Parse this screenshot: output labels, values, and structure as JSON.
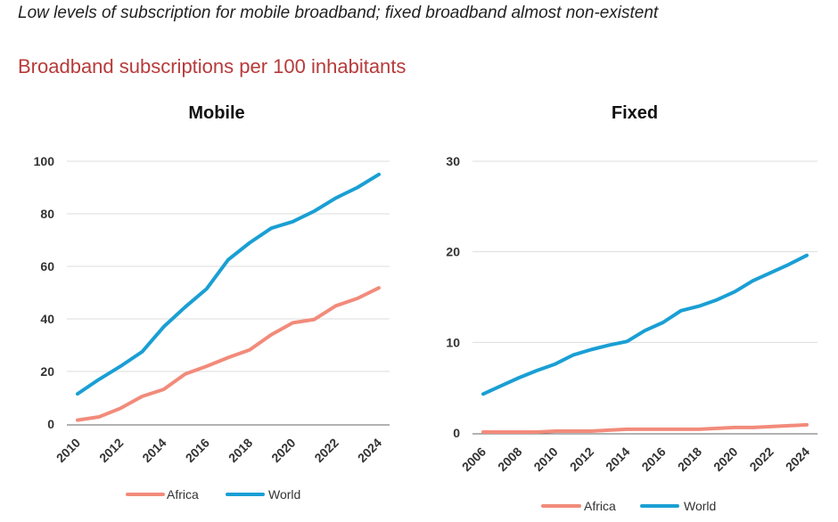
{
  "header": {
    "headline": "Low levels of subscription for mobile broadband; fixed broadband almost non-existent",
    "subtitle": "Broadband subscriptions per 100 inhabitants"
  },
  "colors": {
    "subtitle": "#b83a3a",
    "africa": "#f28b7b",
    "world": "#1a9fd4"
  },
  "chart_data": [
    {
      "type": "line",
      "title": "Mobile",
      "xlabel": "",
      "ylabel": "",
      "ylim": [
        0,
        100
      ],
      "yticks": [
        0,
        20,
        40,
        60,
        80,
        100
      ],
      "xticks": [
        2010,
        2012,
        2014,
        2016,
        2018,
        2020,
        2022,
        2024
      ],
      "x": [
        2010,
        2011,
        2012,
        2013,
        2014,
        2015,
        2016,
        2017,
        2018,
        2019,
        2020,
        2021,
        2022,
        2023,
        2024
      ],
      "grid": true,
      "legend": "bottom",
      "series": [
        {
          "name": "Africa",
          "values": [
            1.5,
            2.7,
            6,
            10.5,
            13.2,
            19,
            22,
            25.3,
            28.2,
            34,
            38.5,
            39.8,
            45,
            47.8,
            51.8
          ]
        },
        {
          "name": "World",
          "values": [
            11.5,
            17,
            22,
            27.5,
            37,
            44.5,
            51.5,
            62.5,
            69,
            74.5,
            77,
            81,
            86,
            90,
            95
          ]
        }
      ]
    },
    {
      "type": "line",
      "title": "Fixed",
      "xlabel": "",
      "ylabel": "",
      "ylim": [
        0,
        30
      ],
      "yticks": [
        0,
        10,
        20,
        30
      ],
      "xticks": [
        2006,
        2008,
        2010,
        2012,
        2014,
        2016,
        2018,
        2020,
        2022,
        2024
      ],
      "x": [
        2006,
        2007,
        2008,
        2009,
        2010,
        2011,
        2012,
        2013,
        2014,
        2015,
        2016,
        2017,
        2018,
        2019,
        2020,
        2021,
        2022,
        2023,
        2024
      ],
      "grid": true,
      "legend": "bottom",
      "series": [
        {
          "name": "Africa",
          "values": [
            0.1,
            0.1,
            0.1,
            0.1,
            0.2,
            0.2,
            0.2,
            0.3,
            0.4,
            0.4,
            0.4,
            0.4,
            0.4,
            0.5,
            0.6,
            0.6,
            0.7,
            0.8,
            0.9
          ]
        },
        {
          "name": "World",
          "values": [
            4.3,
            5.2,
            6.1,
            6.9,
            7.6,
            8.6,
            9.2,
            9.7,
            10.1,
            11.3,
            12.2,
            13.5,
            14.0,
            14.7,
            15.6,
            16.8,
            17.7,
            18.6,
            19.6
          ]
        }
      ]
    }
  ]
}
